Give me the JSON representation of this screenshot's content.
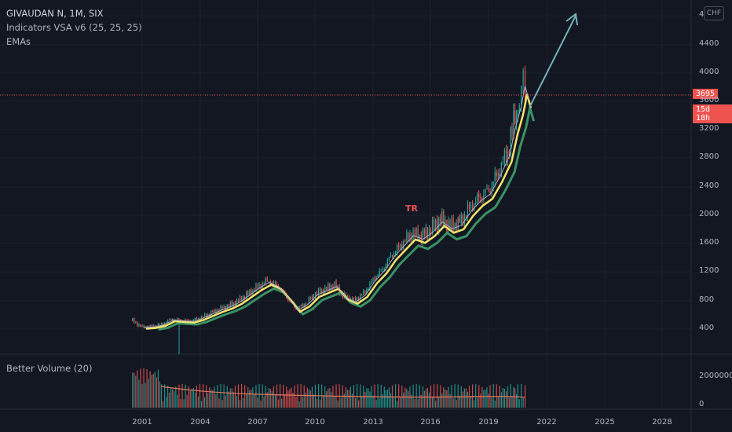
{
  "header": {
    "symbol_line": "GIVAUDAN N, 1M, SIX",
    "indicator_vsa": "Indicators VSA v6 (25, 25, 25)",
    "indicator_emas": "EMAs"
  },
  "currency_button": "CHF",
  "price_axis": {
    "ticks": [
      "4",
      "4400",
      "4000",
      "3600",
      "3200",
      "2800",
      "2400",
      "2000",
      "1600",
      "1200",
      "800",
      "400"
    ]
  },
  "last_price_tag": "3695",
  "countdown_tag": "15d 18h",
  "annotation_tr": "TR",
  "volume_panel": {
    "title": "Better Volume (20)",
    "ticks": [
      "2000000",
      "0"
    ]
  },
  "time_axis": {
    "ticks": [
      "2001",
      "2004",
      "2007",
      "2010",
      "2013",
      "2016",
      "2019",
      "2022",
      "2025",
      "2028"
    ]
  },
  "colors": {
    "background": "#131722",
    "up_candle": "#26a69a",
    "down_candle": "#ef5350",
    "ema_fast": "#f5e46b",
    "ema_slow": "#3fa06b",
    "arrow": "#6fb3b8",
    "price_line": "#ef5350"
  }
}
